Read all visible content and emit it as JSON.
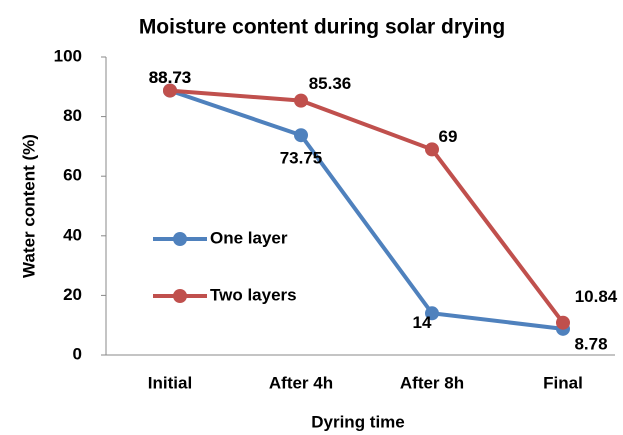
{
  "chart_data": {
    "type": "line",
    "title": "Moisture content during solar drying",
    "x_label": "Dyring time",
    "y_label": "Water content (%)",
    "categories": [
      "Initial",
      "After 4h",
      "After 8h",
      "Final"
    ],
    "series": [
      {
        "name": "One layer",
        "color": "#4f81bd",
        "values": [
          88.73,
          73.75,
          14,
          8.78
        ]
      },
      {
        "name": "Two layers",
        "color": "#c0504d",
        "values": [
          88.73,
          85.36,
          69,
          10.84
        ]
      }
    ],
    "ylim": [
      0,
      100
    ],
    "yticks": [
      0,
      20,
      40,
      60,
      80,
      100
    ],
    "grid": false,
    "legend": "left"
  }
}
